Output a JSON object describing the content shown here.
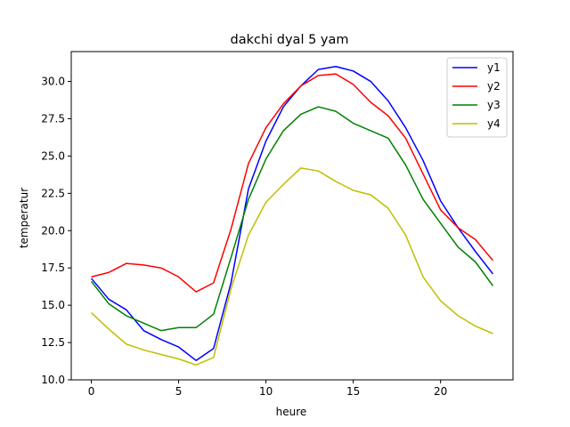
{
  "chart_data": {
    "type": "line",
    "title": "dakchi dyal 5 yam",
    "xlabel": "heure",
    "ylabel": "temperatur",
    "xlim": [
      -1.15,
      24.15
    ],
    "ylim": [
      10.0,
      32.0
    ],
    "xticks": [
      0,
      5,
      10,
      15,
      20
    ],
    "yticks": [
      10.0,
      12.5,
      15.0,
      17.5,
      20.0,
      22.5,
      25.0,
      27.5,
      30.0
    ],
    "ytick_labels": [
      "10.0",
      "12.5",
      "15.0",
      "17.5",
      "20.0",
      "22.5",
      "25.0",
      "27.5",
      "30.0"
    ],
    "grid": false,
    "legend_position": "top-right",
    "x": [
      0,
      1,
      2,
      3,
      4,
      5,
      6,
      7,
      8,
      9,
      10,
      11,
      12,
      13,
      14,
      15,
      16,
      17,
      18,
      19,
      20,
      21,
      22,
      23
    ],
    "series": [
      {
        "name": "y1",
        "color": "#0000ff",
        "values": [
          16.8,
          15.4,
          14.7,
          13.3,
          12.7,
          12.2,
          11.3,
          12.1,
          16.5,
          22.8,
          26.0,
          28.3,
          29.7,
          30.8,
          31.0,
          30.7,
          30.0,
          28.7,
          26.9,
          24.7,
          22.0,
          20.2,
          18.6,
          17.1
        ]
      },
      {
        "name": "y2",
        "color": "#ff0000",
        "values": [
          16.9,
          17.2,
          17.8,
          17.7,
          17.5,
          16.9,
          15.9,
          16.5,
          20.1,
          24.5,
          26.9,
          28.5,
          29.7,
          30.4,
          30.5,
          29.8,
          28.6,
          27.7,
          26.2,
          23.8,
          21.4,
          20.2,
          19.4,
          18.0
        ]
      },
      {
        "name": "y3",
        "color": "#008000",
        "values": [
          16.6,
          15.1,
          14.3,
          13.8,
          13.3,
          13.5,
          13.5,
          14.4,
          18.2,
          22.1,
          24.8,
          26.7,
          27.8,
          28.3,
          28.0,
          27.2,
          26.7,
          26.2,
          24.4,
          22.1,
          20.5,
          18.9,
          17.9,
          16.3
        ]
      },
      {
        "name": "y4",
        "color": "#bfbf00",
        "values": [
          14.5,
          13.4,
          12.4,
          12.0,
          11.7,
          11.4,
          11.0,
          11.5,
          16.1,
          19.7,
          21.9,
          23.1,
          24.2,
          24.0,
          23.3,
          22.7,
          22.4,
          21.5,
          19.7,
          16.9,
          15.3,
          14.3,
          13.6,
          13.1
        ]
      }
    ]
  }
}
